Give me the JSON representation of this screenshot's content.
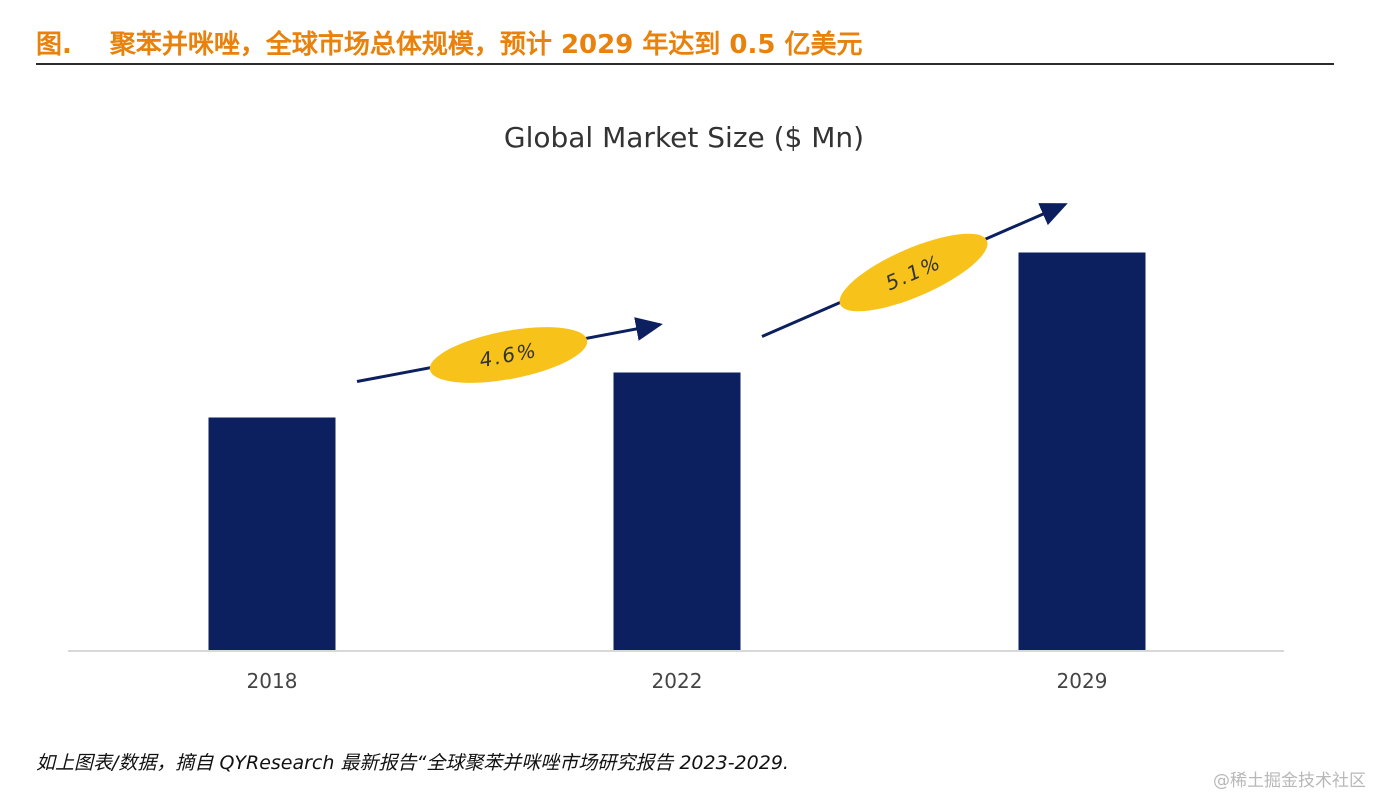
{
  "header": {
    "figure_label": "图.",
    "title": "聚苯并咪唑，全球市场总体规模，预计 2029 年达到 0.5 亿美元"
  },
  "chart_data": {
    "type": "bar",
    "title": "Global Market Size ($ Mn)",
    "categories": [
      "2018",
      "2022",
      "2029"
    ],
    "values": [
      31,
      37,
      53
    ],
    "ylim": [
      0,
      60
    ],
    "xlabel": "",
    "ylabel": "",
    "grid": false,
    "bar_color": "#0c1f5e",
    "growth_annotations": [
      {
        "label": "4.6%",
        "from": "2018",
        "to": "2022"
      },
      {
        "label": "5.1%",
        "from": "2022",
        "to": "2029"
      }
    ],
    "annotation_color": "#f7c31b",
    "arrow_color": "#0c1f5e"
  },
  "footnote": "如上图表/数据，摘自 QYResearch 最新报告“全球聚苯并咪唑市场研究报告 2023-2029.",
  "watermark": "@稀土掘金技术社区"
}
